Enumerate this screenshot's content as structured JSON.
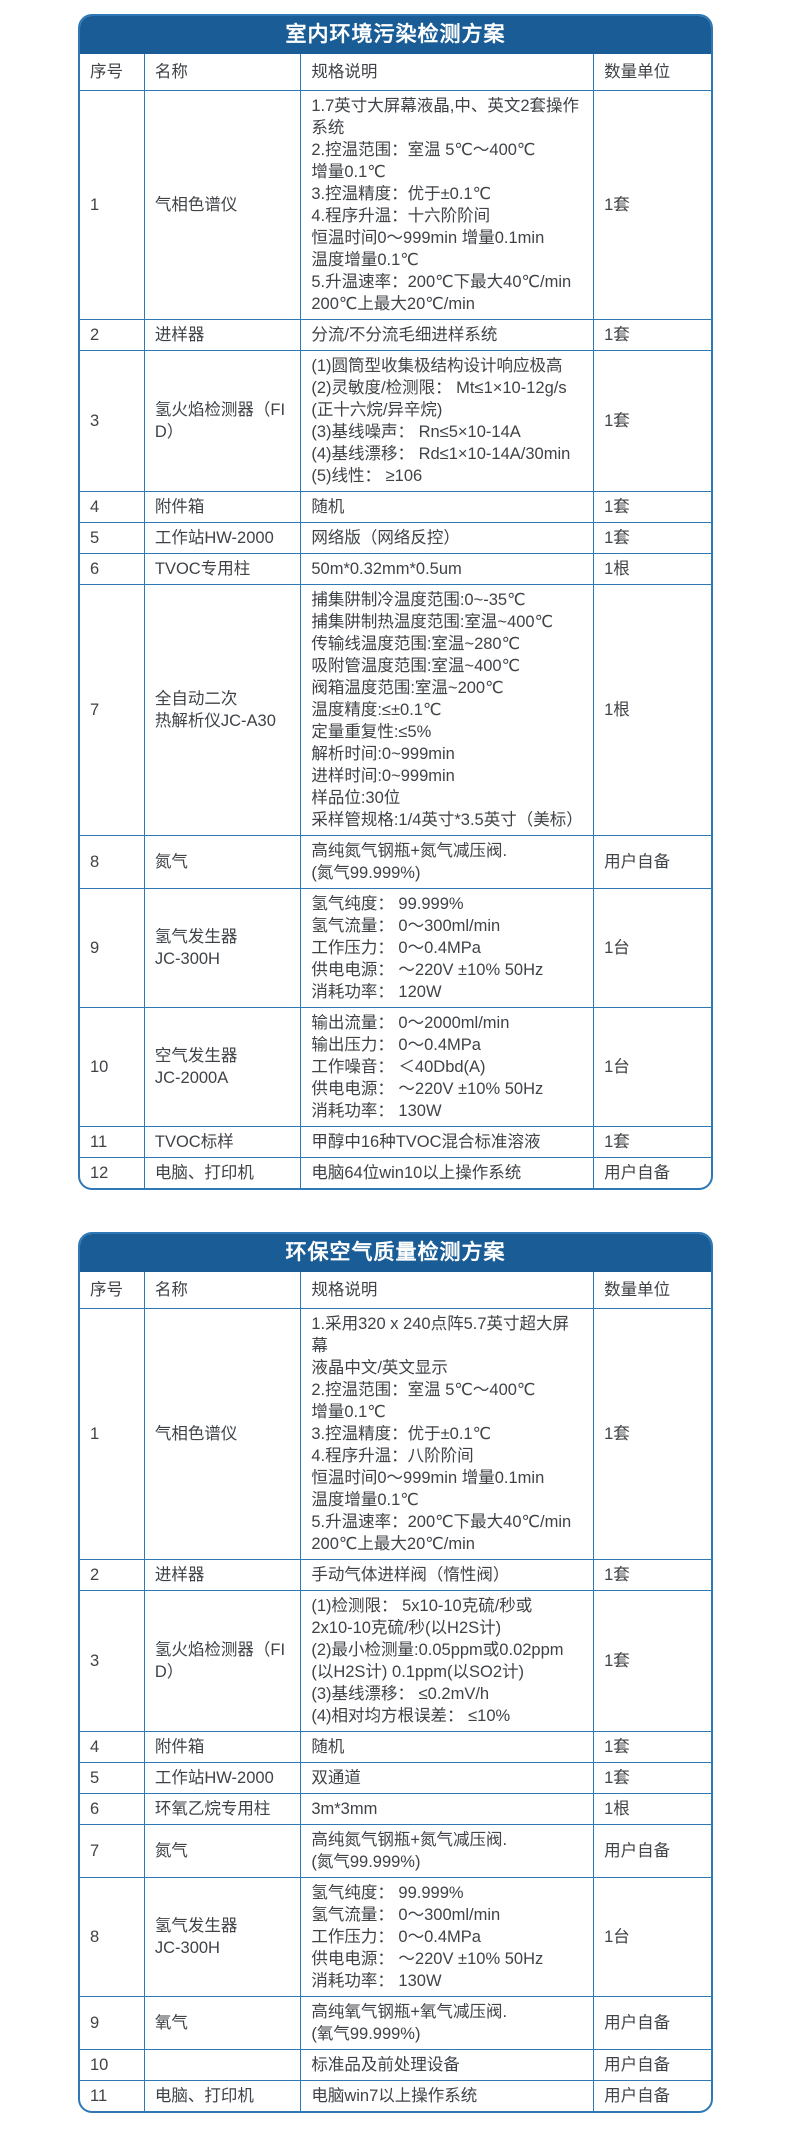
{
  "colors": {
    "title_bar_background": "#1a5c96",
    "table_border": "#2e79b5",
    "body_text": "#3f4347",
    "title_text": "#ffffff"
  },
  "tables": [
    {
      "title": "室内环境污染检测方案",
      "columns": [
        "序号",
        "名称",
        "规格说明",
        "数量单位"
      ],
      "rows": [
        {
          "no": "1",
          "name": [
            "气相色谱仪"
          ],
          "spec": [
            "1.7英寸大屏幕液晶,中、英文2套操作",
            "系统",
            "2.控温范围：室温 5℃～400℃",
            "增量0.1℃",
            "3.控温精度：优于±0.1℃",
            "4.程序升温：十六阶阶间",
            "恒温时间0～999min 增量0.1min",
            "温度增量0.1℃",
            "5.升温速率：200℃下最大40℃/min",
            "200℃上最大20℃/min"
          ],
          "qty": "1套"
        },
        {
          "no": "2",
          "name": [
            "进样器"
          ],
          "spec": [
            "分流/不分流毛细进样系统"
          ],
          "qty": "1套"
        },
        {
          "no": "3",
          "name": [
            "氢火焰检测器（FID）"
          ],
          "spec": [
            "(1)圆筒型收集极结构设计响应极高",
            "(2)灵敏度/检测限： Mt≤1×10-12g/s",
            "(正十六烷/异辛烷)",
            "(3)基线噪声： Rn≤5×10-14A",
            "(4)基线漂移： Rd≤1×10-14A/30min",
            "(5)线性： ≥106"
          ],
          "qty": "1套"
        },
        {
          "no": "4",
          "name": [
            "附件箱"
          ],
          "spec": [
            "随机"
          ],
          "qty": "1套"
        },
        {
          "no": "5",
          "name": [
            "工作站HW-2000"
          ],
          "spec": [
            "网络版（网络反控）"
          ],
          "qty": "1套"
        },
        {
          "no": "6",
          "name": [
            "TVOC专用柱"
          ],
          "spec": [
            "50m*0.32mm*0.5um"
          ],
          "qty": "1根"
        },
        {
          "no": "7",
          "name": [
            "全自动二次",
            "热解析仪JC-A30"
          ],
          "spec": [
            "捕集阱制冷温度范围:0~-35℃",
            "捕集阱制热温度范围:室温~400℃",
            "传输线温度范围:室温~280℃",
            "吸附管温度范围:室温~400℃",
            "阀箱温度范围:室温~200℃",
            "温度精度:≤±0.1℃",
            "定量重复性:≤5%",
            "解析时间:0~999min",
            "进样时间:0~999min",
            "样品位:30位",
            "采样管规格:1/4英寸*3.5英寸（美标）"
          ],
          "qty": "1根"
        },
        {
          "no": "8",
          "name": [
            "氮气"
          ],
          "spec": [
            "高纯氮气钢瓶+氮气减压阀.",
            "(氮气99.999%)"
          ],
          "qty": "用户自备"
        },
        {
          "no": "9",
          "name": [
            "氢气发生器",
            "JC-300H"
          ],
          "spec": [
            "氢气纯度： 99.999%",
            "氢气流量： 0～300ml/min",
            "工作压力： 0～0.4MPa",
            "供电电源： ～220V ±10% 50Hz",
            "消耗功率： 120W"
          ],
          "qty": "1台"
        },
        {
          "no": "10",
          "name": [
            "空气发生器",
            "JC-2000A"
          ],
          "spec": [
            "输出流量： 0～2000ml/min",
            "输出压力： 0～0.4MPa",
            "工作噪音： ＜40Dbd(A)",
            "供电电源： ～220V ±10% 50Hz",
            "消耗功率： 130W"
          ],
          "qty": "1台"
        },
        {
          "no": "11",
          "name": [
            "TVOC标样"
          ],
          "spec": [
            "甲醇中16种TVOC混合标准溶液"
          ],
          "qty": "1套"
        },
        {
          "no": "12",
          "name": [
            "电脑、打印机"
          ],
          "spec": [
            "电脑64位win10以上操作系统"
          ],
          "qty": "用户自备"
        }
      ]
    },
    {
      "title": "环保空气质量检测方案",
      "columns": [
        "序号",
        "名称",
        "规格说明",
        "数量单位"
      ],
      "rows": [
        {
          "no": "1",
          "name": [
            "气相色谱仪"
          ],
          "spec": [
            "1.采用320 x 240点阵5.7英寸超大屏幕",
            "液晶中文/英文显示",
            "2.控温范围：室温 5℃～400℃",
            "增量0.1℃",
            "3.控温精度：优于±0.1℃",
            "4.程序升温：八阶阶间",
            "恒温时间0～999min 增量0.1min",
            "温度增量0.1℃",
            "5.升温速率：200℃下最大40℃/min",
            "200℃上最大20℃/min"
          ],
          "qty": "1套"
        },
        {
          "no": "2",
          "name": [
            "进样器"
          ],
          "spec": [
            "手动气体进样阀（惰性阀）"
          ],
          "qty": "1套"
        },
        {
          "no": "3",
          "name": [
            "氢火焰检测器（FID）"
          ],
          "spec": [
            "(1)检测限： 5x10-10克硫/秒或",
            "2x10-10克硫/秒(以H2S计)",
            "(2)最小检测量:0.05ppm或0.02ppm",
            "(以H2S计) 0.1ppm(以SO2计)",
            "(3)基线漂移： ≤0.2mV/h",
            "(4)相对均方根误差： ≤10%"
          ],
          "qty": "1套"
        },
        {
          "no": "4",
          "name": [
            "附件箱"
          ],
          "spec": [
            "随机"
          ],
          "qty": "1套"
        },
        {
          "no": "5",
          "name": [
            "工作站HW-2000"
          ],
          "spec": [
            "双通道"
          ],
          "qty": "1套"
        },
        {
          "no": "6",
          "name": [
            "环氧乙烷专用柱"
          ],
          "spec": [
            "3m*3mm"
          ],
          "qty": "1根"
        },
        {
          "no": "7",
          "name": [
            "氮气"
          ],
          "spec": [
            "高纯氮气钢瓶+氮气减压阀.",
            "(氮气99.999%)"
          ],
          "qty": "用户自备"
        },
        {
          "no": "8",
          "name": [
            "氢气发生器",
            "JC-300H"
          ],
          "spec": [
            "氢气纯度： 99.999%",
            "氢气流量： 0～300ml/min",
            "工作压力： 0～0.4MPa",
            "供电电源： ～220V ±10% 50Hz",
            "消耗功率： 130W"
          ],
          "qty": "1台"
        },
        {
          "no": "9",
          "name": [
            "氧气"
          ],
          "spec": [
            "高纯氧气钢瓶+氧气减压阀.",
            "(氧气99.999%)"
          ],
          "qty": "用户自备"
        },
        {
          "no": "10",
          "name": [],
          "spec": [
            "标准品及前处理设备"
          ],
          "qty": "用户自备"
        },
        {
          "no": "11",
          "name": [
            "电脑、打印机"
          ],
          "spec": [
            "电脑win7以上操作系统"
          ],
          "qty": "用户自备"
        }
      ]
    }
  ]
}
